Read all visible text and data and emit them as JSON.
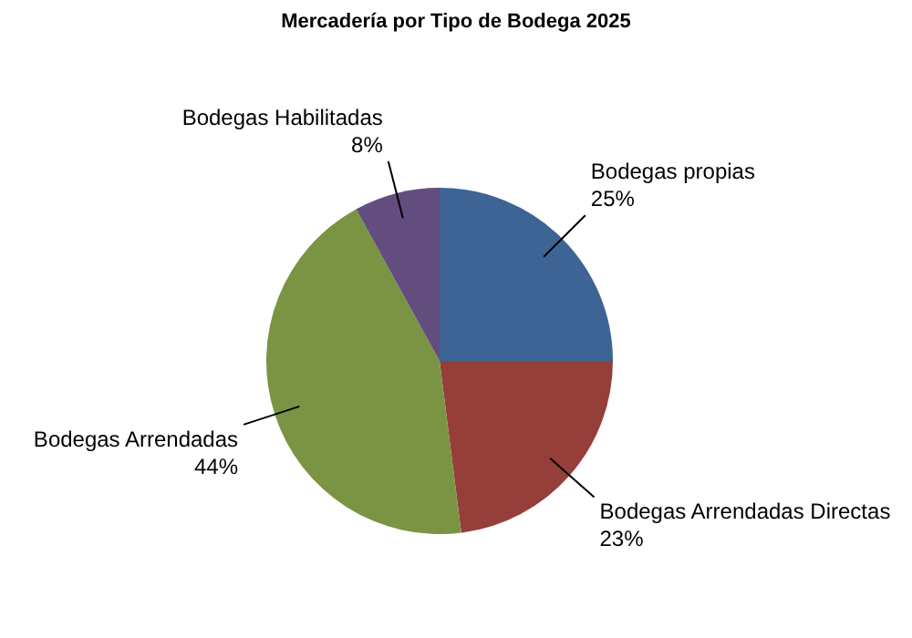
{
  "chart_data": {
    "type": "pie",
    "title": "Mercadería por Tipo de Bodega 2025",
    "categories": [
      "Bodegas propias",
      "Bodegas Arrendadas Directas",
      "Bodegas Arrendadas",
      "Bodegas Habilitadas"
    ],
    "values": [
      25,
      23,
      44,
      8
    ],
    "value_labels": [
      "25%",
      "23%",
      "44%",
      "8%"
    ],
    "colors": [
      "#3e6496",
      "#953e3a",
      "#7a9444",
      "#634d7e"
    ],
    "legend": false
  }
}
